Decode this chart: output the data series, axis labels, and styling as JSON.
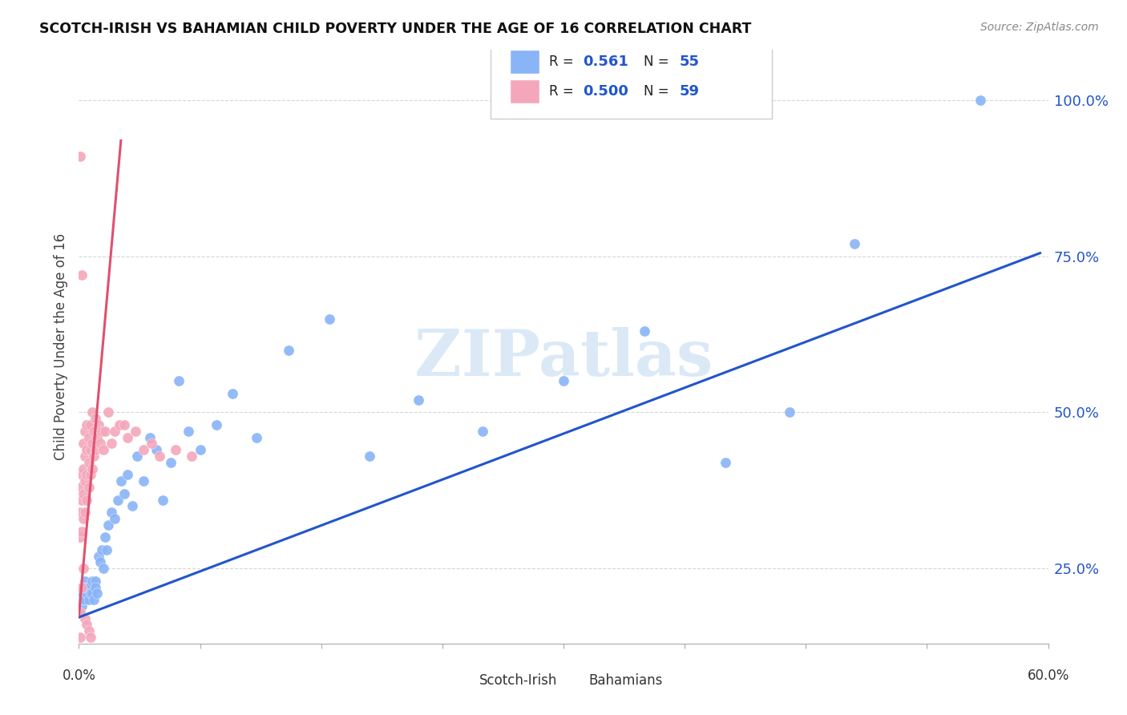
{
  "title": "SCOTCH-IRISH VS BAHAMIAN CHILD POVERTY UNDER THE AGE OF 16 CORRELATION CHART",
  "source": "Source: ZipAtlas.com",
  "ylabel": "Child Poverty Under the Age of 16",
  "ytick_labels": [
    "25.0%",
    "50.0%",
    "75.0%",
    "100.0%"
  ],
  "ytick_values": [
    0.25,
    0.5,
    0.75,
    1.0
  ],
  "xmin": 0.0,
  "xmax": 0.6,
  "ymin": 0.13,
  "ymax": 1.08,
  "legend_blue_R": "0.561",
  "legend_blue_N": "55",
  "legend_pink_R": "0.500",
  "legend_pink_N": "59",
  "blue_scatter_color": "#89b4f8",
  "pink_scatter_color": "#f4a7bb",
  "regression_blue_color": "#2255cc",
  "regression_pink_color": "#e05070",
  "watermark_text": "ZIPatlas",
  "watermark_color": "#b8d4ee",
  "blue_line_x": [
    0.0,
    0.595
  ],
  "blue_line_y": [
    0.172,
    0.755
  ],
  "pink_line_x": [
    0.0,
    0.026
  ],
  "pink_line_y": [
    0.175,
    0.935
  ],
  "scotch_irish_x": [
    0.001,
    0.002,
    0.002,
    0.003,
    0.003,
    0.004,
    0.004,
    0.005,
    0.005,
    0.006,
    0.006,
    0.007,
    0.008,
    0.008,
    0.009,
    0.01,
    0.01,
    0.011,
    0.012,
    0.013,
    0.014,
    0.015,
    0.016,
    0.017,
    0.018,
    0.02,
    0.022,
    0.024,
    0.026,
    0.028,
    0.03,
    0.033,
    0.036,
    0.04,
    0.044,
    0.048,
    0.052,
    0.057,
    0.062,
    0.068,
    0.075,
    0.085,
    0.095,
    0.11,
    0.13,
    0.155,
    0.18,
    0.21,
    0.25,
    0.3,
    0.35,
    0.4,
    0.44,
    0.48,
    0.558
  ],
  "scotch_irish_y": [
    0.18,
    0.19,
    0.21,
    0.2,
    0.22,
    0.2,
    0.23,
    0.21,
    0.22,
    0.2,
    0.22,
    0.21,
    0.21,
    0.23,
    0.2,
    0.23,
    0.22,
    0.21,
    0.27,
    0.26,
    0.28,
    0.25,
    0.3,
    0.28,
    0.32,
    0.34,
    0.33,
    0.36,
    0.39,
    0.37,
    0.4,
    0.35,
    0.43,
    0.39,
    0.46,
    0.44,
    0.36,
    0.42,
    0.55,
    0.47,
    0.44,
    0.48,
    0.53,
    0.46,
    0.6,
    0.65,
    0.43,
    0.52,
    0.47,
    0.55,
    0.63,
    0.42,
    0.5,
    0.77,
    1.0
  ],
  "bahamians_x": [
    0.001,
    0.001,
    0.001,
    0.002,
    0.002,
    0.002,
    0.003,
    0.003,
    0.003,
    0.003,
    0.004,
    0.004,
    0.004,
    0.004,
    0.005,
    0.005,
    0.005,
    0.005,
    0.006,
    0.006,
    0.006,
    0.007,
    0.007,
    0.007,
    0.008,
    0.008,
    0.008,
    0.009,
    0.009,
    0.01,
    0.01,
    0.011,
    0.012,
    0.013,
    0.014,
    0.015,
    0.016,
    0.018,
    0.02,
    0.022,
    0.025,
    0.028,
    0.03,
    0.035,
    0.04,
    0.045,
    0.05,
    0.06,
    0.07,
    0.001,
    0.002,
    0.003,
    0.004,
    0.005,
    0.006,
    0.007,
    0.001,
    0.002,
    0.001
  ],
  "bahamians_y": [
    0.3,
    0.34,
    0.38,
    0.31,
    0.36,
    0.4,
    0.33,
    0.37,
    0.41,
    0.45,
    0.34,
    0.39,
    0.43,
    0.47,
    0.36,
    0.4,
    0.44,
    0.48,
    0.38,
    0.42,
    0.46,
    0.4,
    0.44,
    0.48,
    0.41,
    0.45,
    0.5,
    0.43,
    0.47,
    0.44,
    0.49,
    0.46,
    0.48,
    0.45,
    0.47,
    0.44,
    0.47,
    0.5,
    0.45,
    0.47,
    0.48,
    0.48,
    0.46,
    0.47,
    0.44,
    0.45,
    0.43,
    0.44,
    0.43,
    0.18,
    0.22,
    0.25,
    0.17,
    0.16,
    0.15,
    0.14,
    0.91,
    0.72,
    0.14
  ]
}
